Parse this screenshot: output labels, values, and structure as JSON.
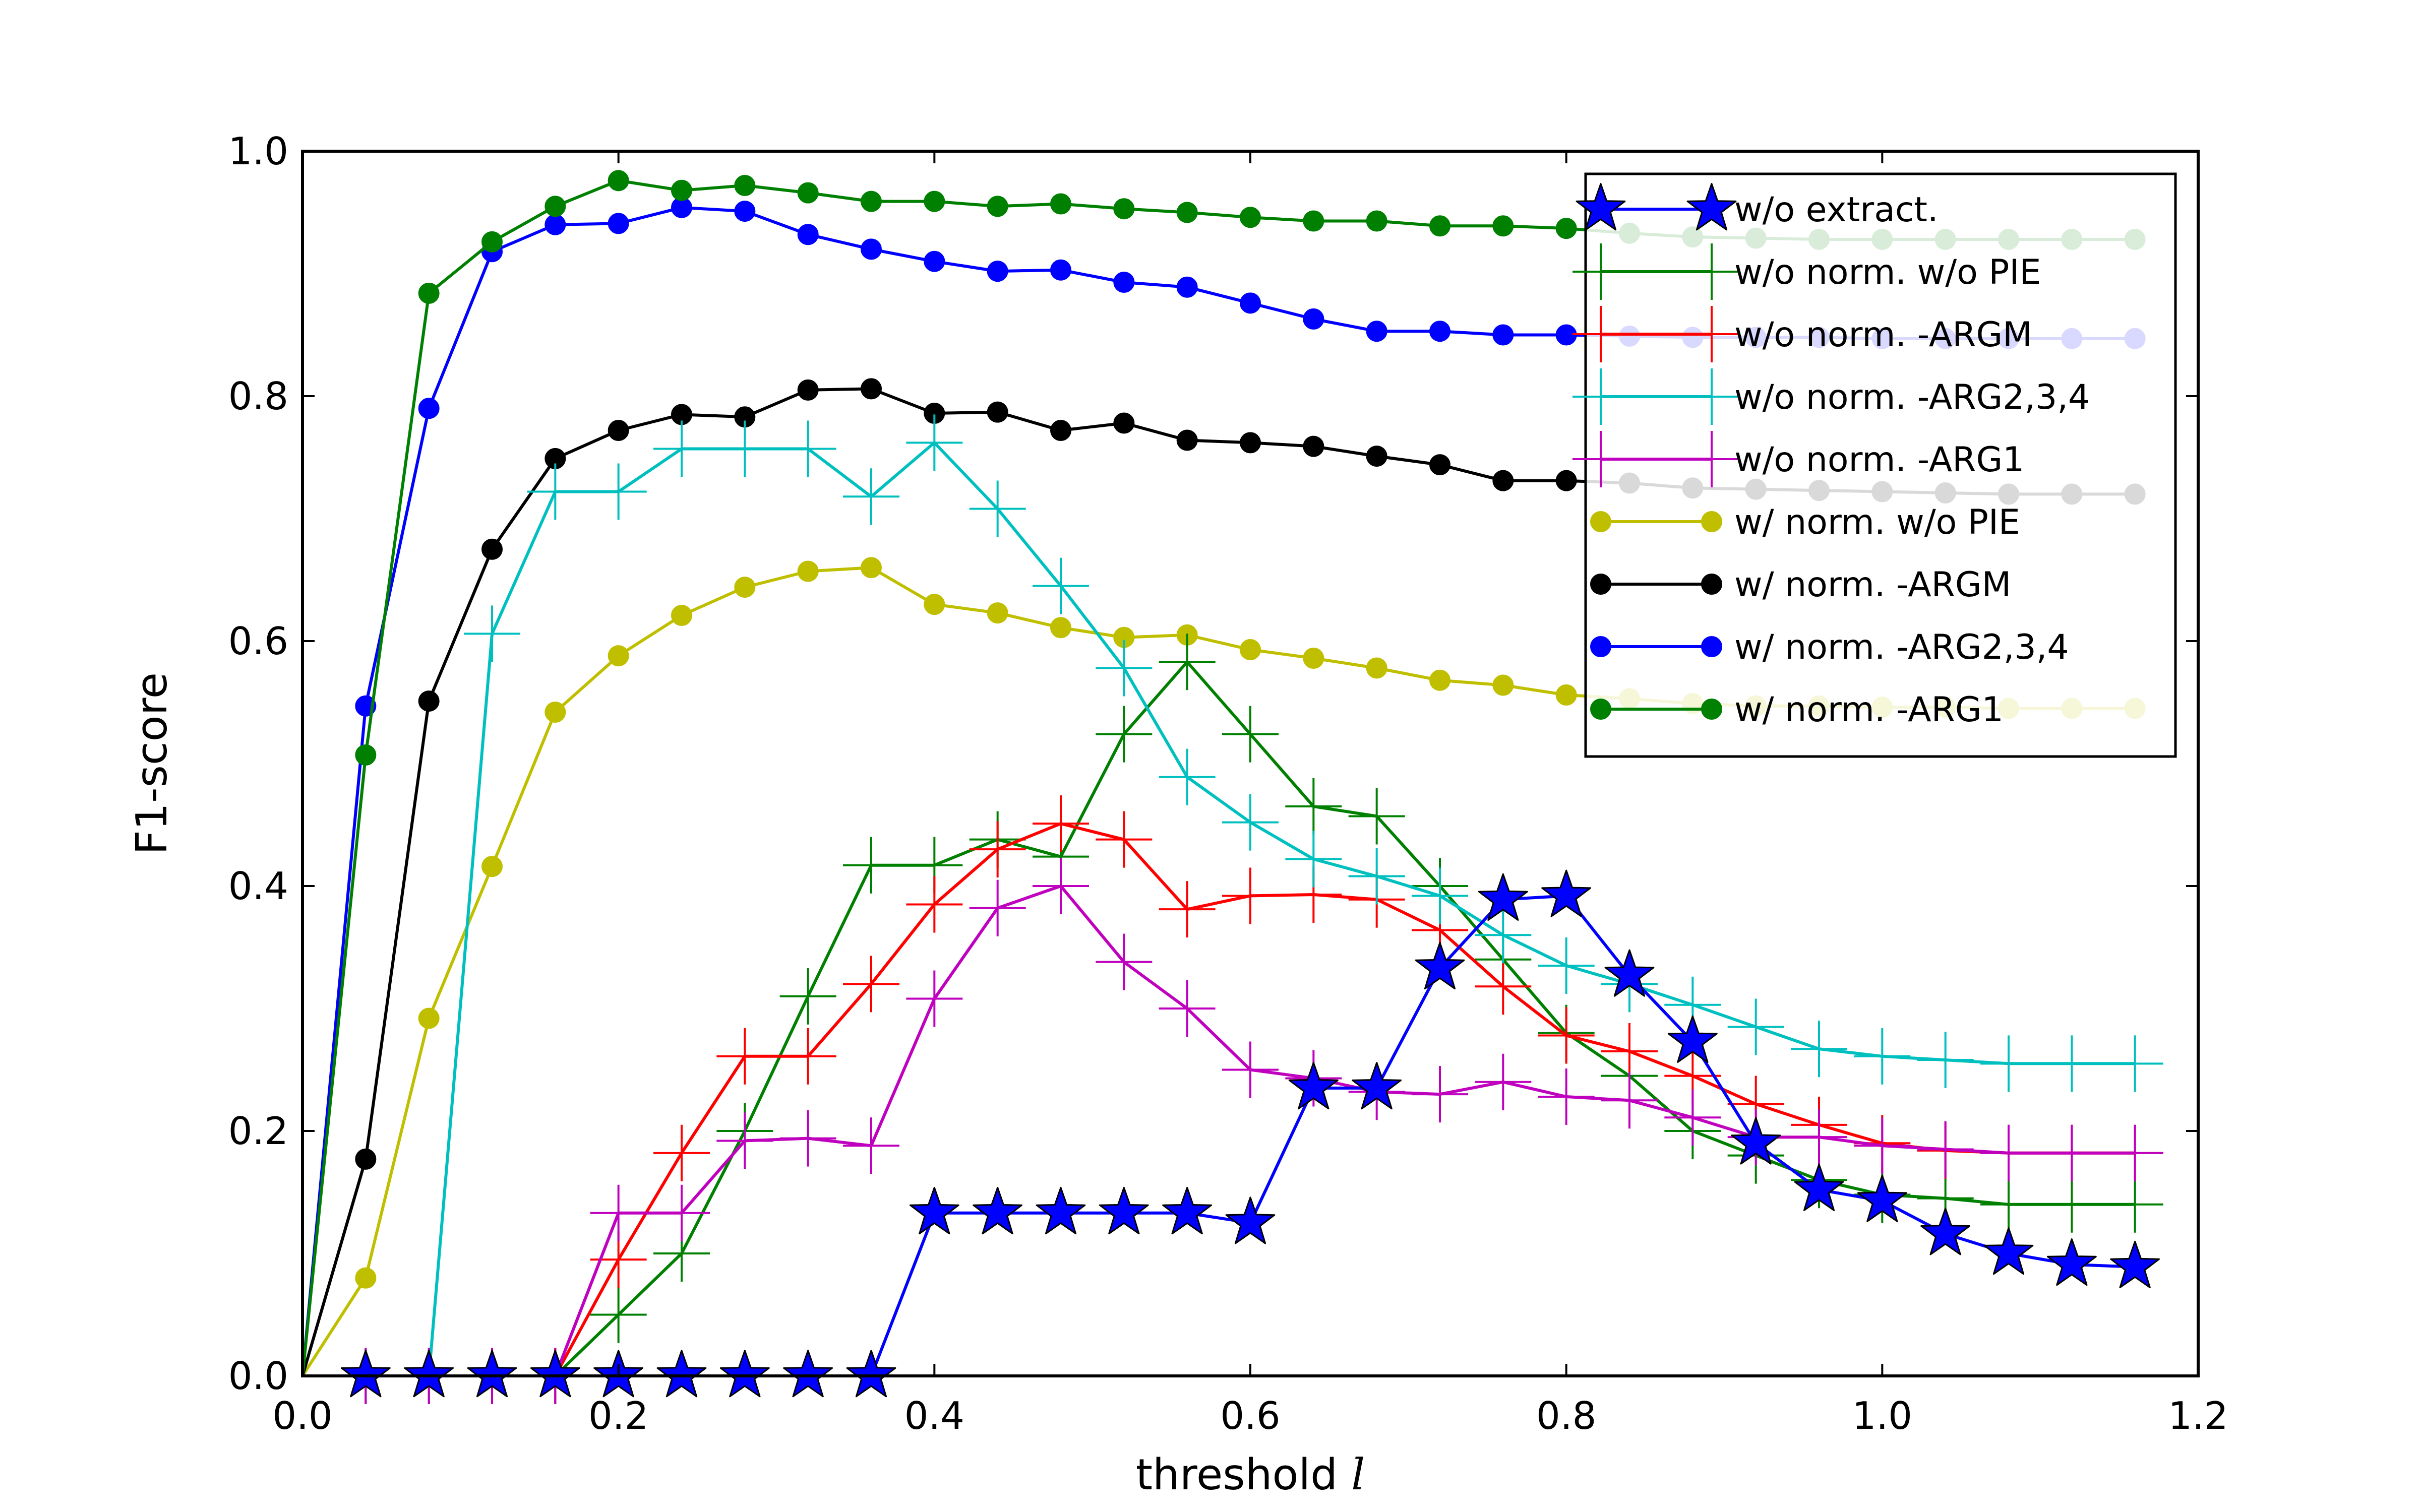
{
  "chart_data": {
    "type": "line",
    "title": "",
    "xlabel": "threshold ",
    "xlabel_var": "l",
    "ylabel": "F1-score",
    "xlim": [
      0.0,
      1.2
    ],
    "ylim": [
      0.0,
      1.0
    ],
    "xticks": [
      "0.0",
      "0.2",
      "0.4",
      "0.6",
      "0.8",
      "1.0",
      "1.2"
    ],
    "yticks": [
      "0.0",
      "0.2",
      "0.4",
      "0.6",
      "0.8",
      "1.0"
    ],
    "legend_position": "top-right",
    "x": [
      0.0,
      0.04,
      0.08,
      0.12,
      0.16,
      0.2,
      0.24,
      0.28,
      0.32,
      0.36,
      0.4,
      0.44,
      0.48,
      0.52,
      0.56,
      0.6,
      0.64,
      0.68,
      0.72,
      0.76,
      0.8,
      0.84,
      0.88,
      0.92,
      0.96,
      1.0,
      1.04,
      1.08,
      1.12,
      1.16
    ],
    "series": [
      {
        "name": "w/o extract.",
        "color": "#0000ff",
        "marker": "star",
        "values": [
          0.0,
          0.0,
          0.0,
          0.0,
          0.0,
          0.0,
          0.0,
          0.0,
          0.0,
          0.0,
          0.133,
          0.133,
          0.133,
          0.133,
          0.133,
          0.125,
          0.235,
          0.235,
          0.333,
          0.389,
          0.392,
          0.327,
          0.273,
          0.19,
          0.152,
          0.143,
          0.116,
          0.1,
          0.091,
          0.089
        ]
      },
      {
        "name": "w/o norm. w/o PIE",
        "color": "#008000",
        "marker": "plus",
        "values": [
          0.0,
          0.0,
          0.0,
          0.0,
          0.0,
          0.05,
          0.1,
          0.2,
          0.31,
          0.417,
          0.417,
          0.438,
          0.424,
          0.524,
          0.583,
          0.524,
          0.465,
          0.457,
          0.4,
          0.34,
          0.28,
          0.245,
          0.2,
          0.18,
          0.16,
          0.148,
          0.145,
          0.14,
          0.14,
          0.14
        ]
      },
      {
        "name": "w/o norm. -ARGM",
        "color": "#ff0000",
        "marker": "plus",
        "values": [
          0.0,
          0.0,
          0.0,
          0.0,
          0.0,
          0.095,
          0.182,
          0.261,
          0.261,
          0.32,
          0.385,
          0.43,
          0.451,
          0.438,
          0.381,
          0.392,
          0.393,
          0.389,
          0.364,
          0.318,
          0.278,
          0.265,
          0.245,
          0.222,
          0.205,
          0.19,
          0.184,
          0.182,
          0.182,
          0.182
        ]
      },
      {
        "name": "w/o norm. -ARG2,3,4",
        "color": "#00bfbf",
        "marker": "plus",
        "values": [
          0.0,
          0.0,
          0.0,
          0.606,
          0.722,
          0.722,
          0.757,
          0.757,
          0.757,
          0.718,
          0.762,
          0.708,
          0.645,
          0.578,
          0.489,
          0.452,
          0.422,
          0.408,
          0.392,
          0.36,
          0.335,
          0.32,
          0.303,
          0.285,
          0.267,
          0.261,
          0.258,
          0.255,
          0.255,
          0.255
        ]
      },
      {
        "name": "w/o norm. -ARG1",
        "color": "#bf00bf",
        "marker": "plus",
        "values": [
          0.0,
          0.0,
          0.0,
          0.0,
          0.0,
          0.133,
          0.133,
          0.192,
          0.194,
          0.188,
          0.308,
          0.382,
          0.4,
          0.338,
          0.3,
          0.25,
          0.243,
          0.232,
          0.23,
          0.24,
          0.228,
          0.225,
          0.211,
          0.195,
          0.195,
          0.188,
          0.185,
          0.182,
          0.182,
          0.182
        ]
      },
      {
        "name": "w/ norm. w/o PIE",
        "color": "#bfbf00",
        "marker": "circle",
        "values": [
          0.0,
          0.08,
          0.292,
          0.416,
          0.542,
          0.588,
          0.621,
          0.644,
          0.657,
          0.66,
          0.63,
          0.623,
          0.611,
          0.603,
          0.605,
          0.593,
          0.586,
          0.578,
          0.568,
          0.564,
          0.556,
          0.553,
          0.549,
          0.547,
          0.547,
          0.546,
          0.546,
          0.545,
          0.545,
          0.545
        ]
      },
      {
        "name": "w/ norm. -ARGM",
        "color": "#000000",
        "marker": "circle",
        "values": [
          0.0,
          0.177,
          0.551,
          0.675,
          0.749,
          0.772,
          0.785,
          0.783,
          0.805,
          0.806,
          0.786,
          0.787,
          0.772,
          0.778,
          0.764,
          0.762,
          0.759,
          0.751,
          0.744,
          0.731,
          0.731,
          0.729,
          0.725,
          0.724,
          0.723,
          0.722,
          0.721,
          0.72,
          0.72,
          0.72
        ]
      },
      {
        "name": "w/ norm. -ARG2,3,4",
        "color": "#0000ff",
        "marker": "circle",
        "values": [
          0.0,
          0.547,
          0.79,
          0.918,
          0.94,
          0.941,
          0.954,
          0.951,
          0.932,
          0.92,
          0.91,
          0.902,
          0.903,
          0.893,
          0.889,
          0.876,
          0.863,
          0.853,
          0.853,
          0.85,
          0.85,
          0.849,
          0.848,
          0.848,
          0.848,
          0.847,
          0.847,
          0.847,
          0.847,
          0.847
        ]
      },
      {
        "name": "w/ norm. -ARG1",
        "color": "#008000",
        "marker": "circle",
        "values": [
          0.0,
          0.507,
          0.884,
          0.926,
          0.955,
          0.976,
          0.968,
          0.972,
          0.966,
          0.959,
          0.959,
          0.955,
          0.957,
          0.953,
          0.95,
          0.946,
          0.943,
          0.943,
          0.939,
          0.939,
          0.937,
          0.933,
          0.93,
          0.929,
          0.928,
          0.928,
          0.928,
          0.928,
          0.928,
          0.928
        ]
      }
    ]
  }
}
